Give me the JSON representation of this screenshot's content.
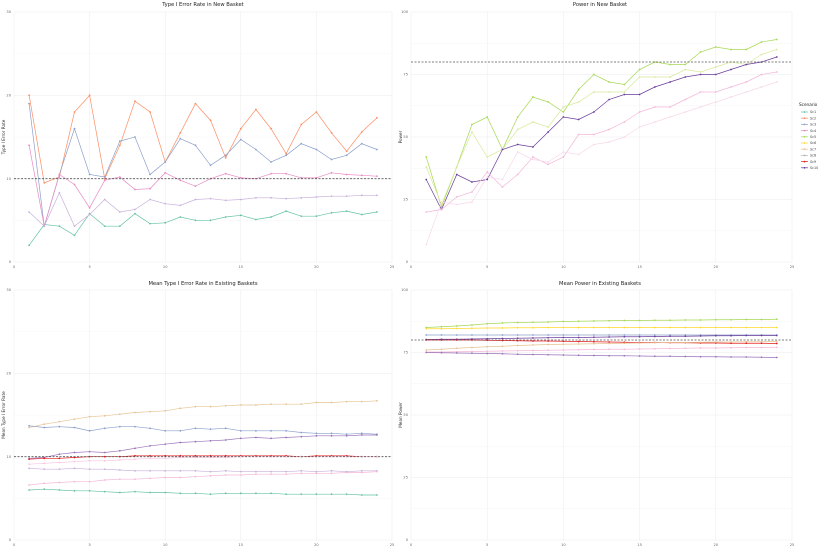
{
  "legend": {
    "title": "Scenario",
    "items": [
      {
        "label": "Sc1",
        "color": "#66C2A5"
      },
      {
        "label": "Sc2",
        "color": "#FC8D62"
      },
      {
        "label": "Sc3",
        "color": "#8DA0CB"
      },
      {
        "label": "Sc4",
        "color": "#E78AC3"
      },
      {
        "label": "Sc5",
        "color": "#A6D854"
      },
      {
        "label": "Sc6",
        "color": "#FFD92F"
      },
      {
        "label": "Sc7",
        "color": "#E5C494"
      },
      {
        "label": "Sc8",
        "color": "#B3B3B3"
      },
      {
        "label": "Sc9",
        "color": "#E31A1C"
      },
      {
        "label": "Sc10",
        "color": "#6A3D9A"
      }
    ]
  },
  "chart_data": [
    {
      "type": "line",
      "title": "Type I Error Rate in New Basket",
      "xlabel": "",
      "ylabel": "Type I Error Rate",
      "xlim": [
        0,
        25
      ],
      "ylim": [
        0,
        30
      ],
      "xticks": [
        0,
        5,
        10,
        15,
        20,
        25
      ],
      "yticks": [
        0,
        10,
        20,
        30
      ],
      "reference_line": 10,
      "x": [
        1,
        2,
        3,
        4,
        5,
        6,
        7,
        8,
        9,
        10,
        11,
        12,
        13,
        14,
        15,
        16,
        17,
        18,
        19,
        20,
        21,
        22,
        23,
        24
      ],
      "series": [
        {
          "color": "#66C2A5",
          "values": [
            2,
            4.5,
            4.3,
            3.2,
            5.8,
            4.3,
            4.3,
            5.8,
            4.6,
            4.7,
            5.4,
            5.0,
            5.0,
            5.4,
            5.6,
            5.1,
            5.4,
            6.1,
            5.5,
            5.5,
            5.9,
            6.1,
            5.7,
            6.0
          ]
        },
        {
          "color": "#FC8D62",
          "values": [
            20,
            9.5,
            10.2,
            18,
            20,
            10,
            14,
            19.3,
            18,
            12,
            15.5,
            19,
            17,
            12.5,
            16,
            18.3,
            16,
            13,
            16.5,
            18,
            15.5,
            13.3,
            15.6,
            17.3
          ]
        },
        {
          "color": "#8DA0CB",
          "values": [
            19,
            4.3,
            10.5,
            16,
            10.5,
            10.2,
            14.5,
            15,
            10.5,
            12,
            14.8,
            14,
            11.6,
            12.8,
            14.7,
            13.5,
            12,
            12.8,
            14.2,
            13.5,
            12.3,
            12.8,
            14.2,
            13.5
          ]
        },
        {
          "color": "#E78AC3",
          "values": [
            14,
            4.3,
            10.5,
            9.3,
            6.5,
            9.8,
            10.2,
            8.7,
            8.8,
            10.7,
            9.8,
            9.1,
            10,
            10.6,
            10.1,
            10,
            10.6,
            10.6,
            10.1,
            10.1,
            10.7,
            10.5,
            10.4,
            10.3
          ]
        },
        {
          "color": "#C7B1DB",
          "values": [
            6,
            4.3,
            8.3,
            4.3,
            5.7,
            7.5,
            6,
            6.3,
            7.5,
            7,
            6.8,
            7.5,
            7.6,
            7.4,
            7.5,
            7.7,
            7.7,
            7.6,
            7.7,
            7.8,
            7.9,
            7.9,
            8,
            8
          ]
        }
      ]
    },
    {
      "type": "line",
      "title": "Power in New Basket",
      "xlabel": "",
      "ylabel": "Power",
      "xlim": [
        0,
        25
      ],
      "ylim": [
        0,
        100
      ],
      "xticks": [
        0,
        5,
        10,
        15,
        20,
        25
      ],
      "yticks": [
        0,
        25,
        50,
        75,
        100
      ],
      "reference_line": 80,
      "x": [
        1,
        2,
        3,
        4,
        5,
        6,
        7,
        8,
        9,
        10,
        11,
        12,
        13,
        14,
        15,
        16,
        17,
        18,
        19,
        20,
        21,
        22,
        23,
        24
      ],
      "series": [
        {
          "color": "#A6D854",
          "values": [
            42,
            22,
            38,
            55,
            58,
            45,
            58,
            66,
            64,
            60,
            69,
            75,
            72,
            71,
            77,
            80,
            79,
            79,
            84,
            86,
            85,
            85,
            88,
            89
          ]
        },
        {
          "color": "#D8E99B",
          "values": [
            38,
            23,
            38,
            52,
            42,
            45,
            53,
            56,
            54,
            62,
            64,
            68,
            68,
            68,
            74,
            74,
            74,
            77,
            76,
            78,
            80,
            79,
            83,
            85
          ]
        },
        {
          "color": "#6A3D9A",
          "values": [
            33,
            21,
            35,
            32,
            33,
            45,
            47,
            46,
            52,
            58,
            57,
            60,
            65,
            67,
            67,
            70,
            72,
            74,
            75,
            75,
            77,
            79,
            80,
            82
          ]
        },
        {
          "color": "#F3B8D8",
          "values": [
            20,
            21,
            26,
            28,
            36,
            30,
            35,
            42,
            39,
            42,
            51,
            51,
            53,
            56,
            60,
            62,
            62,
            65,
            68,
            68,
            70,
            72,
            75,
            76
          ]
        },
        {
          "color": "#F7D9EA",
          "values": [
            7,
            24,
            23,
            24,
            34,
            33,
            44,
            41,
            40,
            44,
            43,
            47,
            48,
            50,
            54,
            56,
            58,
            60,
            62,
            64,
            66,
            68,
            70,
            72
          ]
        }
      ]
    },
    {
      "type": "line",
      "title": "Mean Type I Error Rate in Existing Baskets",
      "xlabel": "",
      "ylabel": "Mean Type I Error Rate",
      "xlim": [
        0,
        25
      ],
      "ylim": [
        0,
        30
      ],
      "xticks": [
        0,
        5,
        10,
        15,
        20,
        25
      ],
      "yticks": [
        0,
        10,
        20,
        30
      ],
      "reference_line": 10,
      "x": [
        1,
        2,
        3,
        4,
        5,
        6,
        7,
        8,
        9,
        10,
        11,
        12,
        13,
        14,
        15,
        16,
        17,
        18,
        19,
        20,
        21,
        22,
        23,
        24
      ],
      "series": [
        {
          "color": "#E5C494",
          "values": [
            13.5,
            13.9,
            14.2,
            14.5,
            14.8,
            14.9,
            15.1,
            15.3,
            15.4,
            15.5,
            15.8,
            16,
            16,
            16.1,
            16.2,
            16.2,
            16.3,
            16.3,
            16.3,
            16.5,
            16.5,
            16.6,
            16.6,
            16.7
          ]
        },
        {
          "color": "#8DA0CB",
          "values": [
            13.7,
            13.5,
            13.6,
            13.5,
            13.1,
            13.4,
            13.6,
            13.6,
            13.4,
            13.1,
            13.1,
            13.4,
            13.3,
            13.4,
            13.1,
            13.1,
            13.1,
            13.1,
            12.9,
            12.8,
            12.8,
            12.7,
            12.8,
            12.7
          ]
        },
        {
          "color": "#9B72B8",
          "values": [
            9.8,
            9.9,
            10.3,
            10.5,
            10.6,
            10.5,
            10.7,
            11,
            11.3,
            11.5,
            11.7,
            11.8,
            11.9,
            12,
            12.2,
            12.3,
            12.2,
            12.3,
            12.4,
            12.5,
            12.5,
            12.5,
            12.6,
            12.6
          ]
        },
        {
          "color": "#E31A1C",
          "values": [
            9.7,
            9.8,
            9.8,
            9.9,
            10,
            10,
            10,
            10.1,
            10.1,
            10.1,
            10.1,
            10.1,
            10.1,
            10.1,
            10.1,
            10.1,
            10.1,
            10.1,
            10,
            10.1,
            10.1,
            10.1,
            10,
            10
          ]
        },
        {
          "color": "#F7C6E0",
          "values": [
            9.1,
            9.2,
            9.3,
            9.4,
            9.5,
            9.5,
            9.6,
            9.7,
            9.8,
            9.8,
            9.9,
            9.9,
            9.9,
            9.9,
            10,
            10,
            10,
            10,
            10,
            10,
            10,
            10,
            10,
            10
          ]
        },
        {
          "color": "#C7B1DB",
          "values": [
            8.6,
            8.5,
            8.5,
            8.6,
            8.5,
            8.5,
            8.4,
            8.3,
            8.3,
            8.3,
            8.3,
            8.3,
            8.2,
            8.3,
            8.2,
            8.2,
            8.2,
            8.2,
            8.3,
            8.2,
            8.3,
            8.2,
            8.3,
            8.3
          ]
        },
        {
          "color": "#F3B8D8",
          "values": [
            6.6,
            6.8,
            6.9,
            7,
            7,
            7.2,
            7.3,
            7.3,
            7.4,
            7.5,
            7.5,
            7.6,
            7.7,
            7.8,
            7.8,
            7.9,
            7.9,
            7.9,
            8,
            8,
            8,
            8.1,
            8.1,
            8.2
          ]
        },
        {
          "color": "#66C2A5",
          "values": [
            6,
            6.1,
            6,
            5.9,
            5.9,
            5.8,
            5.7,
            5.8,
            5.7,
            5.7,
            5.6,
            5.6,
            5.5,
            5.6,
            5.6,
            5.6,
            5.6,
            5.5,
            5.5,
            5.5,
            5.5,
            5.5,
            5.4,
            5.4
          ]
        }
      ]
    },
    {
      "type": "line",
      "title": "Mean Power in Existing Baskets",
      "xlabel": "",
      "ylabel": "Mean Power",
      "xlim": [
        0,
        25
      ],
      "ylim": [
        0,
        100
      ],
      "xticks": [
        0,
        5,
        10,
        15,
        20,
        25
      ],
      "yticks": [
        0,
        25,
        50,
        75,
        100
      ],
      "reference_line": 80,
      "x": [
        1,
        2,
        3,
        4,
        5,
        6,
        7,
        8,
        9,
        10,
        11,
        12,
        13,
        14,
        15,
        16,
        17,
        18,
        19,
        20,
        21,
        22,
        23,
        24
      ],
      "series": [
        {
          "color": "#A6D854",
          "values": [
            85,
            85.3,
            85.6,
            86,
            86.5,
            86.8,
            87,
            87.1,
            87.2,
            87.4,
            87.5,
            87.6,
            87.7,
            87.8,
            87.8,
            87.9,
            87.9,
            88,
            88,
            88.1,
            88.1,
            88.2,
            88.2,
            88.3
          ]
        },
        {
          "color": "#FFD92F",
          "values": [
            84.5,
            84.5,
            84.6,
            84.7,
            84.8,
            84.8,
            84.9,
            84.9,
            85,
            85,
            85,
            85,
            85,
            85,
            85,
            85,
            85,
            85,
            85,
            85,
            85,
            85,
            85,
            85
          ]
        },
        {
          "color": "#8DA0CB",
          "values": [
            82,
            82,
            82,
            82,
            82,
            82,
            82,
            82,
            82,
            82,
            82,
            82,
            82,
            82,
            82,
            82,
            82,
            82,
            82,
            82,
            82,
            82,
            82,
            82
          ]
        },
        {
          "color": "#6A3D9A",
          "values": [
            80.2,
            80.3,
            80.3,
            80.4,
            80.5,
            80.6,
            80.7,
            80.8,
            80.9,
            81,
            81,
            81.1,
            81.2,
            81.3,
            81.3,
            81.4,
            81.5,
            81.5,
            81.6,
            81.7,
            81.7,
            81.8,
            81.8,
            81.8
          ]
        },
        {
          "color": "#E31A1C",
          "values": [
            80,
            80,
            80,
            80,
            79.9,
            79.8,
            79.7,
            79.6,
            79.6,
            79.5,
            79.4,
            79.3,
            79.2,
            79.1,
            79,
            79,
            78.9,
            78.9,
            78.8,
            78.8,
            78.7,
            78.7,
            78.7,
            78.6
          ]
        },
        {
          "color": "#E5C494",
          "values": [
            76,
            76.3,
            76.7,
            77,
            77.3,
            77.5,
            77.8,
            78,
            78.2,
            78.3,
            78.4,
            78.5,
            78.6,
            78.7,
            78.8,
            78.9,
            79,
            79,
            79.1,
            79.2,
            79.2,
            79.3,
            79.3,
            79.4
          ]
        },
        {
          "color": "#F3B8D8",
          "values": [
            75.2,
            75.2,
            75.3,
            75.4,
            75.5,
            75.6,
            75.7,
            75.8,
            75.9,
            76,
            76.1,
            76.2,
            76.3,
            76.3,
            76.4,
            76.5,
            76.6,
            76.7,
            76.8,
            76.8,
            76.9,
            77,
            77,
            77.1
          ]
        },
        {
          "color": "#9B72B8",
          "values": [
            75,
            74.9,
            74.8,
            74.7,
            74.6,
            74.5,
            74.3,
            74.2,
            74.1,
            74,
            73.9,
            73.8,
            73.7,
            73.7,
            73.6,
            73.5,
            73.5,
            73.4,
            73.3,
            73.3,
            73.2,
            73.2,
            73.1,
            73
          ]
        }
      ]
    }
  ]
}
